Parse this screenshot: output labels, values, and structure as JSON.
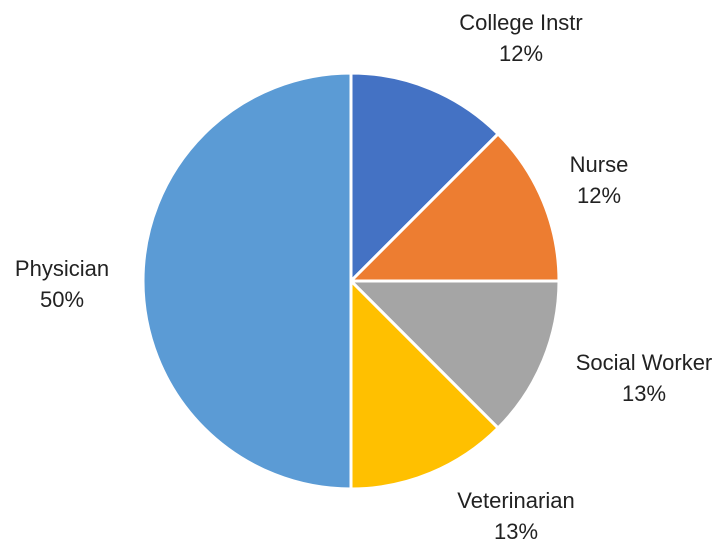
{
  "chart_data": {
    "type": "pie",
    "slices": [
      {
        "label": "College Instr",
        "percent_label": "12%",
        "value": 12.5,
        "color": "#4472c4"
      },
      {
        "label": "Nurse",
        "percent_label": "12%",
        "value": 12.5,
        "color": "#ed7d31"
      },
      {
        "label": "Social Worker",
        "percent_label": "13%",
        "value": 12.5,
        "color": "#a5a5a5"
      },
      {
        "label": "Veterinarian",
        "percent_label": "13%",
        "value": 12.5,
        "color": "#ffc000"
      },
      {
        "label": "Physician",
        "percent_label": "50%",
        "value": 50,
        "color": "#5b9bd5"
      }
    ],
    "start_angle_deg": 0,
    "direction": "clockwise",
    "slice_border_color": "#ffffff"
  }
}
